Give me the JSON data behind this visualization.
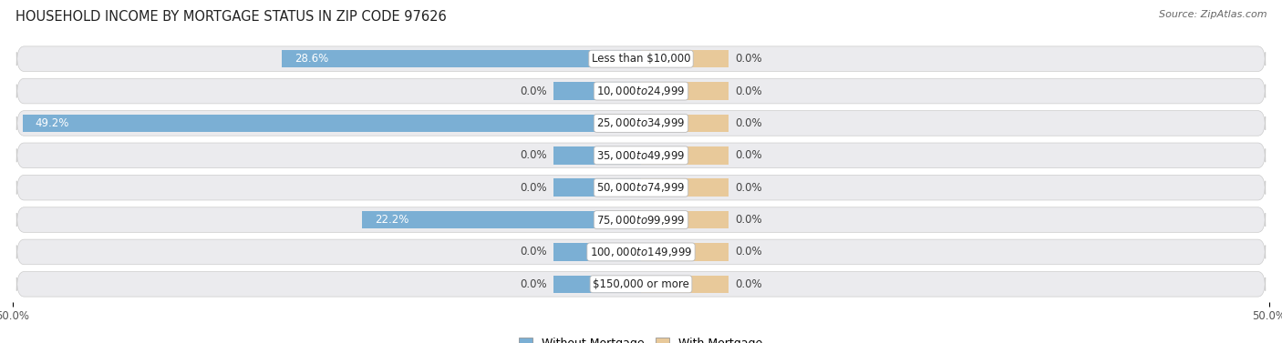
{
  "title": "HOUSEHOLD INCOME BY MORTGAGE STATUS IN ZIP CODE 97626",
  "source": "Source: ZipAtlas.com",
  "categories": [
    "Less than $10,000",
    "$10,000 to $24,999",
    "$25,000 to $34,999",
    "$35,000 to $49,999",
    "$50,000 to $74,999",
    "$75,000 to $99,999",
    "$100,000 to $149,999",
    "$150,000 or more"
  ],
  "without_mortgage": [
    28.6,
    0.0,
    49.2,
    0.0,
    0.0,
    22.2,
    0.0,
    0.0
  ],
  "with_mortgage": [
    0.0,
    0.0,
    0.0,
    0.0,
    0.0,
    0.0,
    0.0,
    0.0
  ],
  "color_without": "#7bafd4",
  "color_with": "#e8c99a",
  "xlim_left": -50.0,
  "xlim_right": 50.0,
  "stub_size": 7.0,
  "bg_color": "#ffffff",
  "row_bg_color": "#ebebee",
  "title_fontsize": 10.5,
  "label_fontsize": 8.5,
  "tick_fontsize": 8.5,
  "legend_fontsize": 9,
  "source_fontsize": 8
}
